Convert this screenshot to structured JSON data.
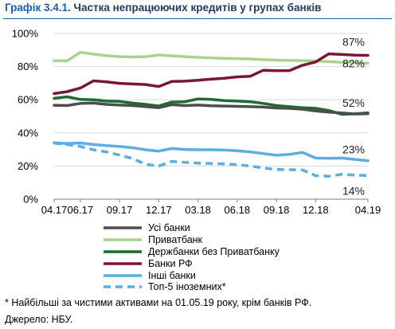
{
  "header": {
    "number": "Графік 3.4.1.",
    "text": "Частка непрацюючих кредитів у групах банків"
  },
  "footnote": "* Найбільші за чистими активами на 01.05.19 року, крім банків РФ.",
  "source": "Джерело: НБУ.",
  "chart_data": {
    "type": "line",
    "title": "Частка непрацюючих кредитів у групах банків",
    "x": [
      "04.17",
      "05.17",
      "06.17",
      "07.17",
      "08.17",
      "09.17",
      "10.17",
      "11.17",
      "12.17",
      "01.18",
      "02.18",
      "03.18",
      "04.18",
      "05.18",
      "06.18",
      "07.18",
      "08.18",
      "09.18",
      "10.18",
      "11.18",
      "12.18",
      "01.19",
      "02.19",
      "03.19",
      "04.19"
    ],
    "x_tick_labels": [
      "04.17",
      "06.17",
      "09.17",
      "12.17",
      "03.18",
      "06.18",
      "09.18",
      "12.18",
      "04.19"
    ],
    "x_tick_indices": [
      0,
      2,
      5,
      8,
      11,
      14,
      17,
      20,
      24
    ],
    "ylim": [
      0,
      100
    ],
    "y_ticks": [
      0,
      20,
      40,
      60,
      80,
      100
    ],
    "y_tick_labels": [
      "0%",
      "20%",
      "40%",
      "60%",
      "80%",
      "100%"
    ],
    "grid": "horizontal",
    "legend_position": "bottom",
    "series": [
      {
        "name": "Усі банки",
        "color": "#4d4d4d",
        "dash": false,
        "values": [
          56.7,
          56.5,
          57.8,
          58.0,
          57.2,
          56.8,
          56.5,
          55.8,
          55.2,
          57.0,
          56.5,
          56.8,
          56.4,
          56.2,
          56.0,
          55.8,
          55.6,
          55.0,
          54.8,
          54.3,
          53.2,
          52.5,
          52.0,
          51.4,
          51.6
        ],
        "end_label": ""
      },
      {
        "name": "Приватбанк",
        "color": "#a8d48a",
        "dash": false,
        "values": [
          83.5,
          83.5,
          88.6,
          87.5,
          86.6,
          86.0,
          85.8,
          86.0,
          87.0,
          86.5,
          86.0,
          85.6,
          85.3,
          85.0,
          84.8,
          84.6,
          84.2,
          83.9,
          83.7,
          83.6,
          83.4,
          83.0,
          82.6,
          82.3,
          82.0
        ],
        "end_label": "82%"
      },
      {
        "name": "Держбанки без Приватбанку",
        "color": "#1d6b2e",
        "dash": false,
        "values": [
          60.8,
          61.8,
          60.2,
          60.0,
          59.2,
          59.0,
          58.0,
          57.2,
          56.2,
          58.6,
          58.8,
          60.5,
          60.2,
          59.5,
          59.2,
          58.8,
          57.8,
          56.5,
          55.8,
          55.2,
          54.8,
          53.5,
          51.2,
          51.5,
          52.0
        ],
        "end_label": "52%"
      },
      {
        "name": "Банки РФ",
        "color": "#7a1731",
        "dash": false,
        "values": [
          63.7,
          64.9,
          67.0,
          71.4,
          70.8,
          69.9,
          69.5,
          69.2,
          68.0,
          71.0,
          71.2,
          71.8,
          72.4,
          73.0,
          73.8,
          74.2,
          77.8,
          77.5,
          77.6,
          80.8,
          82.8,
          87.7,
          87.3,
          86.9,
          86.8
        ],
        "end_label": "87%"
      },
      {
        "name": "Інші банки",
        "color": "#5aaee0",
        "dash": false,
        "values": [
          34.0,
          33.5,
          33.9,
          33.0,
          32.3,
          31.8,
          31.0,
          29.8,
          29.0,
          30.6,
          30.0,
          29.8,
          29.8,
          29.6,
          29.2,
          28.5,
          27.5,
          26.5,
          27.0,
          28.2,
          24.8,
          24.6,
          24.8,
          24.0,
          23.2
        ],
        "end_label": "23%"
      },
      {
        "name": "Топ-5 іноземних*",
        "color": "#5aaee0",
        "dash": true,
        "values": [
          33.8,
          33.0,
          31.8,
          29.8,
          28.5,
          26.6,
          24.5,
          21.0,
          20.0,
          22.8,
          22.2,
          21.8,
          21.5,
          21.3,
          20.8,
          20.0,
          18.8,
          17.9,
          17.8,
          17.6,
          14.2,
          13.8,
          15.0,
          14.5,
          14.3
        ],
        "end_label": "14%"
      }
    ]
  }
}
